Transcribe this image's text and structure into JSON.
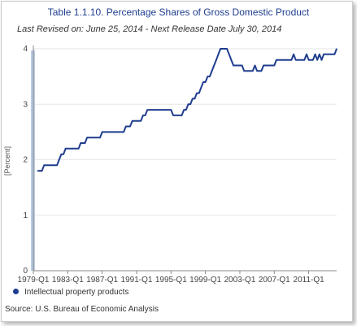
{
  "chart_data": {
    "type": "line",
    "title": "Table 1.1.10. Percentage Shares of Gross Domestic Product",
    "subtitle": "Last Revised on: June 25, 2014 - Next Release Date July 30, 2014",
    "ylabel": "[Percent]",
    "xlabel": "",
    "ylim": [
      0,
      4
    ],
    "yticks": [
      0,
      1,
      2,
      3,
      4
    ],
    "xlim": [
      1979.0,
      2014.25
    ],
    "xticks": [
      {
        "x": 1979.0,
        "label": "1979-Q1"
      },
      {
        "x": 1983.0,
        "label": "1983-Q1"
      },
      {
        "x": 1987.0,
        "label": "1987-Q1"
      },
      {
        "x": 1991.0,
        "label": "1991-Q1"
      },
      {
        "x": 1995.0,
        "label": "1995-Q1"
      },
      {
        "x": 1999.0,
        "label": "1999-Q1"
      },
      {
        "x": 2003.0,
        "label": "2003-Q1"
      },
      {
        "x": 2007.0,
        "label": "2007-Q1"
      },
      {
        "x": 2011.0,
        "label": "2011-Q1"
      }
    ],
    "grid": true,
    "highlight_color": "#b8cce4",
    "line_color": "#1f3d8f",
    "series": [
      {
        "name": "Intellectual property products",
        "points": [
          [
            1979.5,
            1.8
          ],
          [
            1980.0,
            1.8
          ],
          [
            1980.25,
            1.9
          ],
          [
            1980.75,
            1.9
          ],
          [
            1981.25,
            1.9
          ],
          [
            1981.75,
            1.9
          ],
          [
            1982.0,
            2.0
          ],
          [
            1982.25,
            2.1
          ],
          [
            1982.5,
            2.1
          ],
          [
            1982.75,
            2.2
          ],
          [
            1983.25,
            2.2
          ],
          [
            1983.75,
            2.2
          ],
          [
            1984.25,
            2.2
          ],
          [
            1984.5,
            2.3
          ],
          [
            1984.75,
            2.3
          ],
          [
            1985.0,
            2.3
          ],
          [
            1985.25,
            2.4
          ],
          [
            1985.75,
            2.4
          ],
          [
            1986.25,
            2.4
          ],
          [
            1986.75,
            2.4
          ],
          [
            1987.0,
            2.5
          ],
          [
            1987.5,
            2.5
          ],
          [
            1988.0,
            2.5
          ],
          [
            1988.5,
            2.5
          ],
          [
            1989.0,
            2.5
          ],
          [
            1989.5,
            2.5
          ],
          [
            1989.75,
            2.6
          ],
          [
            1990.0,
            2.6
          ],
          [
            1990.25,
            2.6
          ],
          [
            1990.5,
            2.7
          ],
          [
            1991.0,
            2.7
          ],
          [
            1991.5,
            2.7
          ],
          [
            1991.75,
            2.8
          ],
          [
            1992.0,
            2.8
          ],
          [
            1992.25,
            2.9
          ],
          [
            1992.75,
            2.9
          ],
          [
            1993.25,
            2.9
          ],
          [
            1993.75,
            2.9
          ],
          [
            1994.25,
            2.9
          ],
          [
            1994.75,
            2.9
          ],
          [
            1995.0,
            2.9
          ],
          [
            1995.25,
            2.8
          ],
          [
            1995.75,
            2.8
          ],
          [
            1996.25,
            2.8
          ],
          [
            1996.5,
            2.9
          ],
          [
            1996.75,
            2.9
          ],
          [
            1997.0,
            3.0
          ],
          [
            1997.25,
            3.0
          ],
          [
            1997.5,
            3.1
          ],
          [
            1997.75,
            3.1
          ],
          [
            1998.0,
            3.2
          ],
          [
            1998.25,
            3.2
          ],
          [
            1998.5,
            3.3
          ],
          [
            1998.75,
            3.4
          ],
          [
            1999.0,
            3.4
          ],
          [
            1999.25,
            3.5
          ],
          [
            1999.5,
            3.5
          ],
          [
            1999.75,
            3.6
          ],
          [
            2000.0,
            3.7
          ],
          [
            2000.25,
            3.8
          ],
          [
            2000.5,
            3.9
          ],
          [
            2000.75,
            4.0
          ],
          [
            2001.0,
            4.0
          ],
          [
            2001.5,
            4.0
          ],
          [
            2001.75,
            3.9
          ],
          [
            2002.0,
            3.8
          ],
          [
            2002.25,
            3.7
          ],
          [
            2002.75,
            3.7
          ],
          [
            2003.25,
            3.7
          ],
          [
            2003.5,
            3.6
          ],
          [
            2004.0,
            3.6
          ],
          [
            2004.5,
            3.6
          ],
          [
            2004.75,
            3.7
          ],
          [
            2005.0,
            3.6
          ],
          [
            2005.5,
            3.6
          ],
          [
            2005.75,
            3.7
          ],
          [
            2006.25,
            3.7
          ],
          [
            2006.75,
            3.7
          ],
          [
            2007.0,
            3.7
          ],
          [
            2007.25,
            3.8
          ],
          [
            2007.75,
            3.8
          ],
          [
            2008.25,
            3.8
          ],
          [
            2008.75,
            3.8
          ],
          [
            2009.0,
            3.8
          ],
          [
            2009.25,
            3.9
          ],
          [
            2009.5,
            3.8
          ],
          [
            2010.0,
            3.8
          ],
          [
            2010.5,
            3.8
          ],
          [
            2010.75,
            3.9
          ],
          [
            2011.0,
            3.8
          ],
          [
            2011.5,
            3.8
          ],
          [
            2011.75,
            3.9
          ],
          [
            2012.0,
            3.8
          ],
          [
            2012.25,
            3.9
          ],
          [
            2012.5,
            3.8
          ],
          [
            2012.75,
            3.9
          ],
          [
            2013.25,
            3.9
          ],
          [
            2013.75,
            3.9
          ],
          [
            2014.0,
            3.9
          ],
          [
            2014.25,
            4.0
          ]
        ]
      }
    ],
    "legend": {
      "position": "bottom-left",
      "label": "Intellectual property products"
    },
    "source": "Source: U.S. Bureau of Economic Analysis"
  }
}
